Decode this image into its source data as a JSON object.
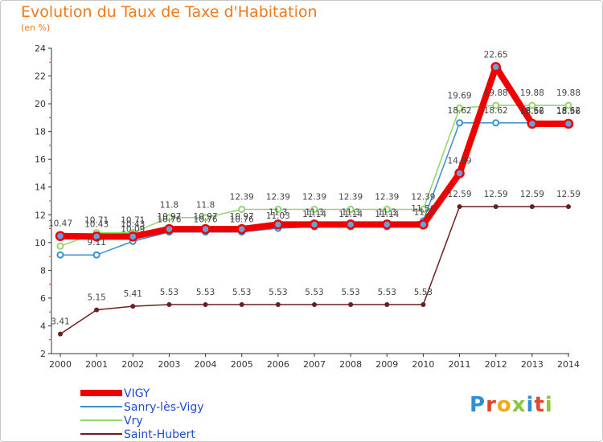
{
  "header": {
    "title": "Evolution du Taux de Taxe d'Habitation",
    "unit": "(en %)"
  },
  "logo": {
    "text": "Proxiti",
    "colors": [
      "#2e8fd6",
      "#e0482a",
      "#f2a81d",
      "#8cc63f",
      "#2e8fd6",
      "#e0482a",
      "#8cc63f"
    ]
  },
  "chart_data": {
    "type": "line",
    "x": [
      2000,
      2001,
      2002,
      2003,
      2004,
      2005,
      2006,
      2007,
      2008,
      2009,
      2010,
      2011,
      2012,
      2013,
      2014
    ],
    "ylim": [
      2,
      24
    ],
    "yticks": [
      2,
      4,
      6,
      8,
      10,
      12,
      14,
      16,
      18,
      20,
      22,
      24
    ],
    "grid": false,
    "legend_placement": "bottom-left",
    "series": [
      {
        "name": "Saint-Hubert",
        "color": "#6b1f1f",
        "width": 1.5,
        "marker": "dot",
        "values": [
          3.41,
          5.15,
          5.41,
          5.53,
          5.53,
          5.53,
          5.53,
          5.53,
          5.53,
          5.53,
          5.53,
          12.59,
          12.59,
          12.59,
          12.59
        ],
        "labels": [
          "3.41",
          "5.15",
          "5.41",
          "5.53",
          "5.53",
          "5.53",
          "5.53",
          "5.53",
          "5.53",
          "5.53",
          "5.53",
          "12.59",
          "12.59",
          "12.59",
          "12.59"
        ]
      },
      {
        "name": "Vry",
        "color": "#8fd66b",
        "width": 1.5,
        "marker": "ring",
        "values": [
          9.74,
          10.71,
          10.71,
          11.8,
          11.8,
          12.39,
          12.39,
          12.39,
          12.39,
          12.39,
          12.39,
          19.69,
          19.88,
          19.88,
          19.88
        ],
        "labels": [
          "",
          "10.71",
          "10.71",
          "11.8",
          "11.8",
          "12.39",
          "12.39",
          "12.39",
          "12.39",
          "12.39",
          "12.39",
          "19.69",
          "19.88",
          "19.88",
          "19.88"
        ]
      },
      {
        "name": "Sanry-lès-Vigy",
        "color": "#3a8fd0",
        "width": 1.5,
        "marker": "ring",
        "values": [
          9.11,
          9.11,
          10.09,
          10.76,
          10.76,
          10.76,
          11.03,
          11.14,
          11.14,
          11.14,
          11.56,
          18.62,
          18.62,
          18.62,
          18.62
        ],
        "labels": [
          "",
          "9.11",
          "10.09",
          "10.76",
          "10.76",
          "10.76",
          "11.03",
          "11.14",
          "11.14",
          "11.14",
          "11.56",
          "18.62",
          "18.62",
          "18.62",
          "18.62"
        ]
      },
      {
        "name": "VIGY",
        "color": "#ee0000",
        "width": 8,
        "marker": "ring",
        "values": [
          10.47,
          10.43,
          10.43,
          10.97,
          10.97,
          10.97,
          11.3,
          11.3,
          11.3,
          11.3,
          11.3,
          14.99,
          22.65,
          18.56,
          18.56
        ],
        "labels": [
          "10.47",
          "10.43",
          "10.43",
          "10.97",
          "10.97",
          "10.97",
          "11.3",
          "11.3",
          "11.3",
          "11.3",
          "11.3",
          "14.99",
          "22.65",
          "18.56",
          "18.56"
        ]
      }
    ],
    "legend_order": [
      "VIGY",
      "Sanry-lès-Vigy",
      "Vry",
      "Saint-Hubert"
    ]
  }
}
